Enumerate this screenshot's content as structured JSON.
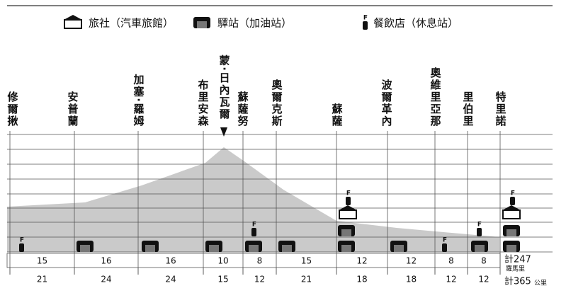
{
  "legend": [
    "旅社（汽車旅館）",
    "驛站（加油站）",
    "餐飲店（休息站）"
  ],
  "towns": [
    "修爾揪",
    "安普蘭",
    "加塞·羅姆",
    "布里安森",
    "蒙·日內瓦爾",
    "蘇薩努",
    "奧爾克斯",
    "蘇薩",
    "波爾革內",
    "奧維里亞那",
    "里伯里",
    "特里諾"
  ],
  "miles": [
    "15",
    "16",
    "16",
    "10",
    "8",
    "15",
    "12",
    "12",
    "8",
    "8"
  ],
  "km": [
    "21",
    "24",
    "24",
    "15",
    "12",
    "21",
    "18",
    "18",
    "12",
    "12"
  ],
  "total_miles": "計247",
  "miles_unit": "羅馬里",
  "total_km": "計365",
  "km_unit": "公里"
}
